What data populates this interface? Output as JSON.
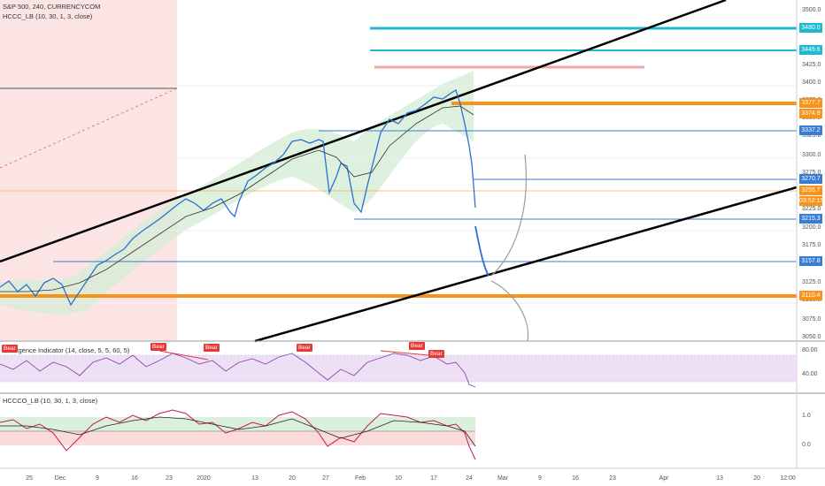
{
  "main_chart": {
    "legend_line1": "S&P 500, 240, CURRENCYCOM",
    "legend_line2": "HCCC_LB (10, 30, 1, 3, close)",
    "price_ticks": [
      "3500.0",
      "3475.0",
      "3425.0",
      "3400.0",
      "3375.0",
      "3350.0",
      "3325.0",
      "3300.0",
      "3275.0",
      "3250.0",
      "3225.0",
      "3200.0",
      "3175.0",
      "3150.0",
      "3125.0",
      "3100.0",
      "3075.0",
      "3050.0"
    ],
    "price_labels": [
      {
        "text": "3480.0",
        "color": "#1eb8d0"
      },
      {
        "text": "3449.6",
        "color": "#1eb8d0"
      },
      {
        "text": "3377.7",
        "color": "#f7931a"
      },
      {
        "text": "3374.9",
        "color": "#f7931a"
      },
      {
        "text": "3337.2",
        "color": "#3a7bd5"
      },
      {
        "text": "3270.7",
        "color": "#3a7bd5"
      },
      {
        "text": "3255.7",
        "color": "#f7931a"
      },
      {
        "text": "03:52:15",
        "color": "#f7931a"
      },
      {
        "text": "3215.3",
        "color": "#3a7bd5"
      },
      {
        "text": "3157.8",
        "color": "#3a7bd5"
      },
      {
        "text": "3110.4",
        "color": "#f7931a"
      }
    ]
  },
  "rsi_pane": {
    "legend": "Divergence Indicator (14, close, 5, 5, 60, 5)",
    "ticks": [
      "80.00",
      "40.00"
    ],
    "bear_label": "Bear"
  },
  "hccco_pane": {
    "legend": "HCCCO_LB (10, 30, 1, 3, close)",
    "ticks": [
      "1.0",
      "0.0"
    ]
  },
  "time_axis": {
    "labels": [
      "25",
      "Dec",
      "9",
      "16",
      "23",
      "2020",
      "13",
      "20",
      "27",
      "Feb",
      "10",
      "17",
      "24",
      "Mar",
      "9",
      "16",
      "23",
      "Apr",
      "13",
      "20",
      "12:00"
    ]
  },
  "colors": {
    "uptrend": "#000000",
    "support_blue": "#3a7bd5",
    "resistance_orange": "#f7931a",
    "cyan": "#1eb8d0",
    "bear": "#e53935",
    "rsi_line": "#8e44ad",
    "band_green": "#c8e6c9",
    "pink_zone": "#fde2e2"
  }
}
